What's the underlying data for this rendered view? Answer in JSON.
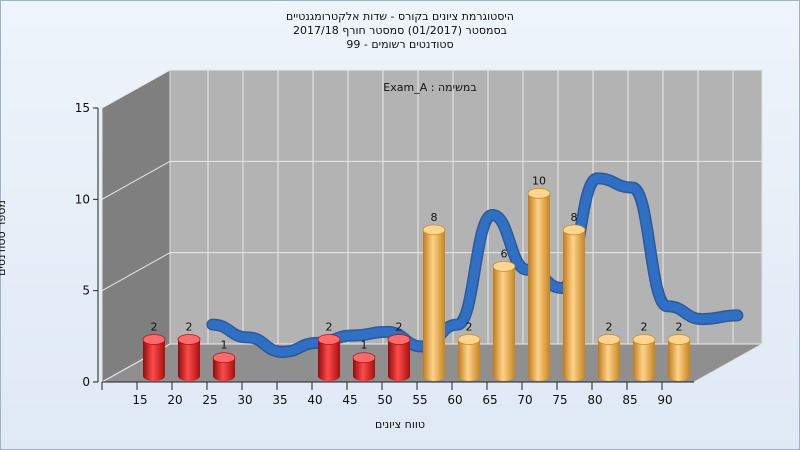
{
  "chart_data": {
    "type": "bar",
    "title_lines": [
      "היסטוגרמת ציונים בקורס - שדות אלקטרומגנטיים",
      "בסמסטר  (01/2017)  סמסטר חורף  2017/18",
      "סטודנטים רשומים - 99"
    ],
    "annotation": "במשימה : Exam_A",
    "xlabel": "טווח ציונים",
    "ylabel": "מספר סטודנטים",
    "x_tick_labels": [
      "15",
      "20",
      "25",
      "30",
      "35",
      "40",
      "45",
      "50",
      "55",
      "60",
      "65",
      "70",
      "75",
      "80",
      "85",
      "90"
    ],
    "y_ticks": [
      0,
      5,
      10,
      15
    ],
    "ylim": [
      0,
      15
    ],
    "bars": [
      {
        "x": 15,
        "value": 2,
        "color": "red"
      },
      {
        "x": 20,
        "value": 2,
        "color": "red"
      },
      {
        "x": 25,
        "value": 1,
        "color": "red"
      },
      {
        "x": 40,
        "value": 2,
        "color": "red"
      },
      {
        "x": 45,
        "value": 1,
        "color": "red"
      },
      {
        "x": 50,
        "value": 2,
        "color": "red"
      },
      {
        "x": 55,
        "value": 8,
        "color": "gold"
      },
      {
        "x": 60,
        "value": 2,
        "color": "gold"
      },
      {
        "x": 65,
        "value": 6,
        "color": "gold"
      },
      {
        "x": 70,
        "value": 10,
        "color": "gold"
      },
      {
        "x": 75,
        "value": 8,
        "color": "gold"
      },
      {
        "x": 80,
        "value": 2,
        "color": "gold"
      },
      {
        "x": 85,
        "value": 2,
        "color": "gold"
      },
      {
        "x": 90,
        "value": 2,
        "color": "gold"
      }
    ],
    "trend_curve": {
      "color": "#2f6fc4",
      "points": [
        [
          20,
          2
        ],
        [
          25,
          1.3
        ],
        [
          30,
          0.5
        ],
        [
          35,
          1
        ],
        [
          40,
          1.4
        ],
        [
          45,
          1.6
        ],
        [
          50,
          0.8
        ],
        [
          55,
          2
        ],
        [
          60,
          8
        ],
        [
          65,
          5
        ],
        [
          70,
          4
        ],
        [
          75,
          10
        ],
        [
          80,
          9.5
        ],
        [
          85,
          3
        ],
        [
          90,
          2.3
        ],
        [
          95,
          2.5
        ]
      ]
    },
    "colors": {
      "red_bar": "#d81e1e",
      "gold_bar": "#e6a53a",
      "wall_back": "#b3b3b3",
      "wall_left": "#7f7f7f",
      "floor": "#8f8f8f"
    },
    "grid": true,
    "legend": "none"
  }
}
